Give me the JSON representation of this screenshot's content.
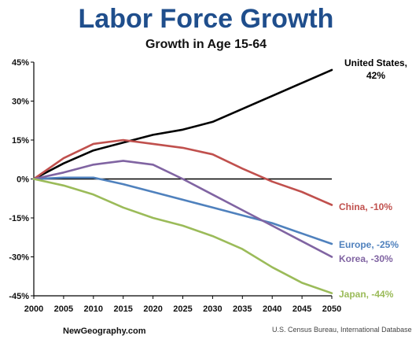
{
  "chart_data": {
    "type": "line",
    "title": "Labor Force Growth",
    "subtitle": "Growth in Age 15-64",
    "x": [
      2000,
      2005,
      2010,
      2015,
      2020,
      2025,
      2030,
      2035,
      2040,
      2045,
      2050
    ],
    "x_tick_labels": [
      "2000",
      "2005",
      "2010",
      "2015",
      "2020",
      "2025",
      "2030",
      "2035",
      "2040",
      "2045",
      "2050"
    ],
    "y_tick_labels": [
      "45%",
      "30%",
      "15%",
      "0%",
      "-15%",
      "-30%",
      "-45%"
    ],
    "y_ticks": [
      45,
      30,
      15,
      0,
      -15,
      -30,
      -45
    ],
    "ylim": [
      -45,
      45
    ],
    "xlim": [
      2000,
      2050
    ],
    "series": [
      {
        "label_line1": "United States,",
        "label_line2": "42%",
        "color": "#000000",
        "values": [
          0,
          6,
          11,
          14,
          17,
          19,
          22,
          27,
          32,
          37,
          42
        ]
      },
      {
        "label_line1": "China, -10%",
        "color": "#c0504d",
        "values": [
          0,
          8,
          13.5,
          15,
          13.5,
          12,
          9.5,
          4,
          -1,
          -5,
          -10
        ]
      },
      {
        "label_line1": "Europe, -25%",
        "color": "#4f81bd",
        "values": [
          0,
          0.5,
          0.5,
          -2,
          -5,
          -8,
          -11,
          -14,
          -17,
          -21,
          -25
        ]
      },
      {
        "label_line1": "Korea, -30%",
        "color": "#8064a2",
        "values": [
          0,
          2.5,
          5.5,
          7,
          5.5,
          0,
          -6,
          -12,
          -18,
          -24,
          -30
        ]
      },
      {
        "label_line1": "Japan, -44%",
        "color": "#9bbb59",
        "values": [
          0,
          -2.5,
          -6,
          -11,
          -15,
          -18,
          -22,
          -27,
          -34,
          -40,
          -44
        ]
      }
    ],
    "grid": false
  },
  "footer": {
    "left": "NewGeography.com",
    "right": "U.S. Census Bureau, International Database"
  }
}
